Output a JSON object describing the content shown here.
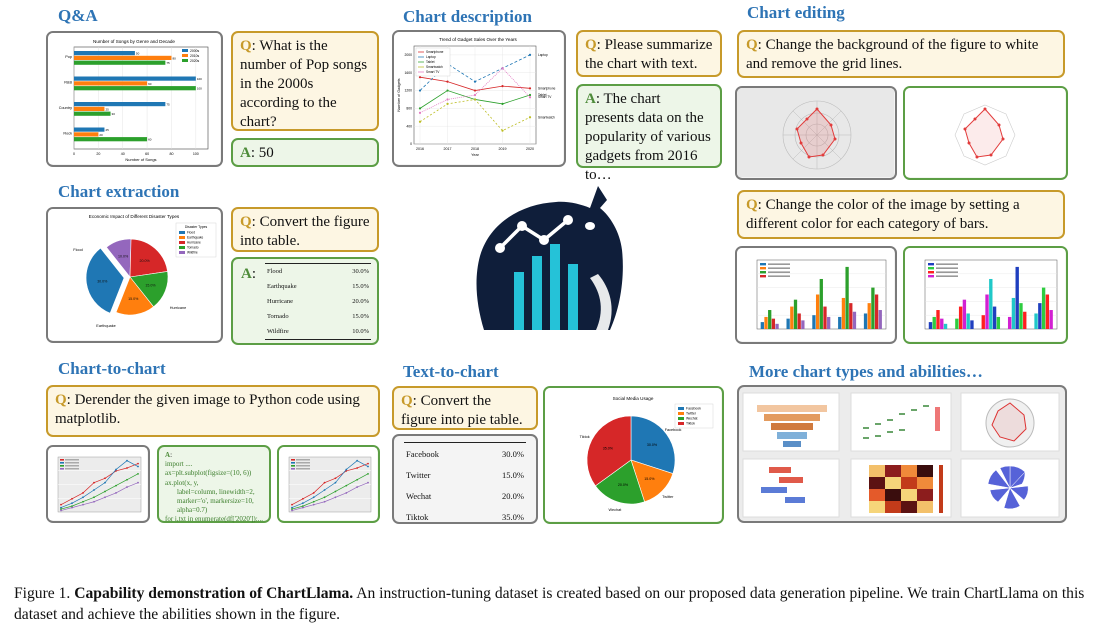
{
  "sections": {
    "qa": "Q&A",
    "description": "Chart description",
    "editing": "Chart editing",
    "extraction": "Chart extraction",
    "chart2chart": "Chart-to-chart",
    "text2chart": "Text-to-chart",
    "more": "More chart types and abilities…"
  },
  "qa": {
    "q_label": "Q",
    "q_text": ": What is the number of Pop songs in the 2000s according to the chart?",
    "a_label": "A",
    "a_text": ": 50",
    "chart_title": "Number of Songs by Genre and Decade",
    "legend": [
      "2000s",
      "2010s",
      "2020s"
    ],
    "genres": [
      "Pop",
      "R&B",
      "Country",
      "Rock"
    ],
    "xlabel": "Number of Songs"
  },
  "description": {
    "q_label": "Q",
    "q_text": ": Please summarize the chart with text.",
    "a_label": "A",
    "a_text": ": The chart presents data on the popularity of various gadgets from 2016 to…",
    "chart_title": "Trend of Gadget Sales Over the Years",
    "legend": [
      "Smartphone",
      "Laptop",
      "Tablet",
      "Smartwatch",
      "Smart TV"
    ],
    "ylabel": "Number of Gadgets",
    "xlabel": "Year",
    "years": [
      "2016",
      "2017",
      "2018",
      "2019",
      "2020"
    ]
  },
  "editing": {
    "q1_label": "Q",
    "q1_text": ": Change the background of the figure to white and remove the grid lines.",
    "q2_label": "Q",
    "q2_text": ": Change the color of the image by setting a different color for each category of bars."
  },
  "extraction": {
    "q_label": "Q",
    "q_text": ": Convert the figure into table.",
    "a_label": "A",
    "a_text": ":",
    "chart_title": "Economic Impact of Different Disaster Types",
    "legend_title": "Disaster Types",
    "legend": [
      "Flood",
      "Earthquake",
      "Hurricane",
      "Tornado",
      "Wildfire"
    ],
    "pie_labels": [
      "Flood",
      "Earthquake",
      "Hurricane"
    ],
    "rows": [
      {
        "name": "Flood",
        "value": "30.0%"
      },
      {
        "name": "Earthquake",
        "value": "15.0%"
      },
      {
        "name": "Hurricane",
        "value": "20.0%"
      },
      {
        "name": "Tornado",
        "value": "15.0%"
      },
      {
        "name": "Wildfire",
        "value": "10.0%"
      }
    ]
  },
  "chart2chart": {
    "q_label": "Q",
    "q_text": ": Derender the given image to Python code using matplotlib.",
    "a_label": "A",
    "a_text": ":",
    "code": [
      "import ....",
      "ax=plt.subplot(figsize=(10, 6))",
      "ax.plot(x, y,",
      "label=column, linewidth=2,",
      "marker='o', markersize=10,",
      "alpha=0.7)",
      "for i,txt in enumerate(df['2020']):..."
    ]
  },
  "text2chart": {
    "q_label": "Q",
    "q_text": ": Convert the figure into pie table.",
    "rows": [
      {
        "name": "Facebook",
        "value": "30.0%"
      },
      {
        "name": "Twitter",
        "value": "15.0%"
      },
      {
        "name": "Wechat",
        "value": "20.0%"
      },
      {
        "name": "Tiktok",
        "value": "35.0%"
      }
    ],
    "chart_title": "Social Media Usage",
    "legend": [
      "Facebook",
      "Twitter",
      "Wechat",
      "Tiktok"
    ],
    "slice_pcts": [
      "30.0%",
      "15.0%",
      "20.0%",
      "35.0%"
    ]
  },
  "caption": {
    "prefix": "Figure 1.",
    "bold": "Capability demonstration of ChartLlama.",
    "text": " An instruction-tuning dataset is created based on our proposed data generation pipeline. We train ChartLlama on this dataset and achieve the abilities shown in the figure."
  },
  "colors": {
    "heading": "#2e74b5",
    "question_border": "#c79a2a",
    "answer_border": "#5c9e45",
    "logo_dark": "#0f1e3a",
    "logo_accent": "#25c2d8"
  },
  "chart_data": [
    {
      "type": "bar",
      "title": "Number of Songs by Genre and Decade",
      "orientation": "horizontal",
      "categories": [
        "Pop",
        "R&B",
        "Country",
        "Rock"
      ],
      "series": [
        {
          "name": "2000s",
          "values": [
            50,
            100,
            75,
            25
          ]
        },
        {
          "name": "2010s",
          "values": [
            80,
            60,
            25,
            20
          ]
        },
        {
          "name": "2020s",
          "values": [
            75,
            100,
            30,
            60
          ]
        }
      ],
      "xlabel": "Number of Songs",
      "xlim": [
        0,
        110
      ]
    },
    {
      "type": "line",
      "title": "Trend of Gadget Sales Over the Years",
      "x": [
        "2016",
        "2017",
        "2018",
        "2019",
        "2020"
      ],
      "series": [
        {
          "name": "Smartphone",
          "values": [
            1500,
            1400,
            1200,
            1300,
            1250
          ]
        },
        {
          "name": "Laptop",
          "values": [
            1200,
            1800,
            1400,
            1700,
            2000
          ]
        },
        {
          "name": "Tablet",
          "values": [
            800,
            1200,
            1000,
            900,
            1100
          ]
        },
        {
          "name": "Smartwatch",
          "values": [
            500,
            900,
            1000,
            300,
            600
          ]
        },
        {
          "name": "Smart TV",
          "values": [
            700,
            1000,
            1100,
            1700,
            1050
          ]
        }
      ],
      "xlabel": "Year",
      "ylabel": "Number of Gadgets",
      "ylim": [
        0,
        2200
      ]
    },
    {
      "type": "pie",
      "title": "Economic Impact of Different Disaster Types",
      "labels": [
        "Flood",
        "Earthquake",
        "Hurricane",
        "Tornado",
        "Wildfire"
      ],
      "values": [
        30,
        15,
        20,
        15,
        10
      ]
    },
    {
      "type": "pie",
      "title": "Social Media Usage",
      "labels": [
        "Facebook",
        "Twitter",
        "Wechat",
        "Tiktok"
      ],
      "values": [
        30,
        15,
        20,
        35
      ]
    }
  ]
}
